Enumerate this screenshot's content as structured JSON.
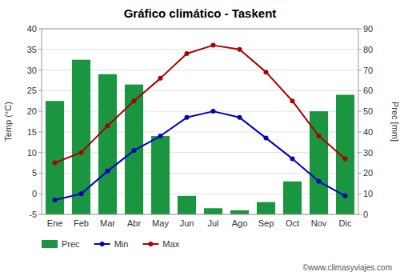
{
  "chart_data": {
    "type": "bar",
    "title": "Gráfico climático - Taskent",
    "ylabel": "Temp (°C)",
    "y2label": "Prec [mm]",
    "annotations": [
      "©www.climasyviajes.com"
    ],
    "categories": [
      "Ene",
      "Feb",
      "Mar",
      "Abr",
      "May",
      "Jun",
      "Jul",
      "Ago",
      "Sep",
      "Oct",
      "Nov",
      "Dic"
    ],
    "series": [
      {
        "name": "Prec",
        "type": "bar",
        "axis": "y2",
        "color": "#1a9641",
        "values": [
          55,
          75,
          68,
          63,
          38,
          9,
          3,
          2,
          6,
          16,
          50,
          58
        ]
      },
      {
        "name": "Min",
        "type": "line",
        "color": "#0000bb",
        "marker": "circle",
        "values": [
          -1.5,
          0.0,
          5.5,
          10.5,
          14.0,
          18.5,
          20.0,
          18.5,
          13.5,
          8.5,
          3.0,
          -0.5
        ]
      },
      {
        "name": "Max",
        "type": "line",
        "color": "#aa0000",
        "marker": "circle",
        "values": [
          7.5,
          10.0,
          16.5,
          22.5,
          28.0,
          34.0,
          36.0,
          35.0,
          29.5,
          22.5,
          14.0,
          8.5
        ]
      }
    ],
    "ylim": [
      -5,
      40
    ],
    "yticks": [
      -5,
      0,
      5,
      10,
      15,
      20,
      25,
      30,
      35,
      40
    ],
    "y2lim": [
      0,
      90
    ],
    "y2ticks": [
      0,
      10,
      20,
      30,
      40,
      50,
      60,
      70,
      80,
      90
    ],
    "grid": true,
    "legend": "bottom"
  }
}
